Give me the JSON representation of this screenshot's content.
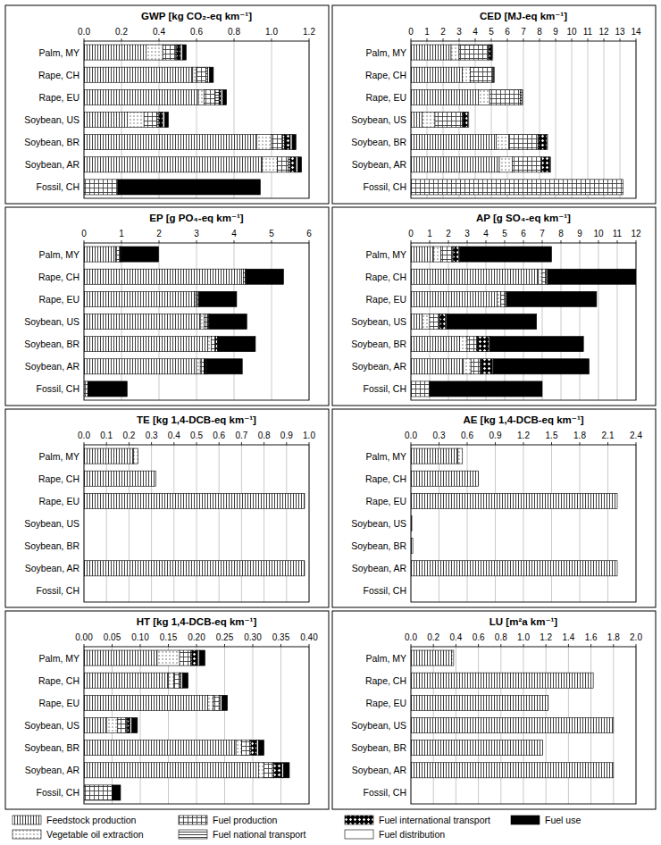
{
  "chart_data": [
    {
      "type": "bar",
      "title": "GWP [kg CO₂-eq km⁻¹]",
      "orientation": "horizontal",
      "stacked": true,
      "grid": true,
      "legend": "bottom",
      "categories": [
        "Palm, MY",
        "Rape, CH",
        "Rape, EU",
        "Soybean, US",
        "Soybean, BR",
        "Soybean, AR",
        "Fossil, CH"
      ],
      "xlim": [
        0,
        1.2
      ],
      "xticks": [
        {
          "value": 0,
          "label": "0.0"
        },
        0.2,
        0.4,
        0.6,
        0.8,
        {
          "value": 1,
          "label": "1.0"
        },
        1.2
      ],
      "series": [
        {
          "name": "Feedstock production",
          "color": "#404040",
          "values": [
            0.33,
            0.58,
            0.61,
            0.23,
            0.92,
            0.95,
            0
          ]
        },
        {
          "name": "Vegetable oil extraction",
          "color": "#505050",
          "values": [
            0.09,
            0.02,
            0.03,
            0.09,
            0.08,
            0.08,
            0
          ]
        },
        {
          "name": "Fuel production",
          "color": "#404040",
          "values": [
            0.07,
            0.05,
            0.06,
            0.07,
            0.06,
            0.06,
            0.18
          ]
        },
        {
          "name": "Fuel national transport",
          "color": "#404040",
          "values": [
            0.005,
            0.01,
            0.02,
            0.01,
            0.01,
            0.01,
            0
          ]
        },
        {
          "name": "Fuel international transport",
          "color": "#000000",
          "values": [
            0.02,
            0,
            0.01,
            0.02,
            0.03,
            0.03,
            0
          ]
        },
        {
          "name": "Fuel distribution",
          "color": "#ffffff",
          "values": [
            0.01,
            0.01,
            0.01,
            0.01,
            0.01,
            0.01,
            0
          ]
        },
        {
          "name": "Fuel use",
          "color": "#000000",
          "values": [
            0.02,
            0.02,
            0.02,
            0.02,
            0.02,
            0.02,
            0.76
          ]
        }
      ]
    },
    {
      "type": "bar",
      "title": "CED [MJ-eq km⁻¹]",
      "orientation": "horizontal",
      "stacked": true,
      "grid": true,
      "categories": [
        "Palm, MY",
        "Rape, CH",
        "Rape, EU",
        "Soybean, US",
        "Soybean, BR",
        "Soybean, AR",
        "Fossil, CH"
      ],
      "xlim": [
        0,
        14
      ],
      "xticks": [
        0,
        1,
        2,
        3,
        4,
        5,
        6,
        7,
        8,
        9,
        10,
        11,
        12,
        13,
        14
      ],
      "series": [
        {
          "name": "Feedstock production",
          "color": "#404040",
          "values": [
            2.5,
            3.2,
            4.2,
            0.7,
            5.3,
            5.5,
            0
          ]
        },
        {
          "name": "Vegetable oil extraction",
          "color": "#505050",
          "values": [
            0.5,
            0.5,
            0.7,
            0.8,
            0.8,
            0.8,
            0
          ]
        },
        {
          "name": "Fuel production",
          "color": "#404040",
          "values": [
            1.8,
            1.4,
            1.9,
            1.7,
            1.8,
            1.8,
            13.2
          ]
        },
        {
          "name": "Fuel national transport",
          "color": "#404040",
          "values": [
            0.05,
            0.05,
            0.1,
            0.05,
            0.05,
            0.05,
            0
          ]
        },
        {
          "name": "Fuel international transport",
          "color": "#000000",
          "values": [
            0.2,
            0,
            0,
            0.3,
            0.5,
            0.5,
            0
          ]
        },
        {
          "name": "Fuel distribution",
          "color": "#ffffff",
          "values": [
            0.05,
            0.05,
            0.05,
            0.05,
            0.05,
            0.05,
            0
          ]
        },
        {
          "name": "Fuel use",
          "color": "#000000",
          "values": [
            0,
            0,
            0,
            0,
            0,
            0,
            0
          ]
        }
      ]
    },
    {
      "type": "bar",
      "title": "EP [g PO₄-eq km⁻¹]",
      "orientation": "horizontal",
      "stacked": true,
      "grid": true,
      "categories": [
        "Palm, MY",
        "Rape, CH",
        "Rape, EU",
        "Soybean, US",
        "Soybean, BR",
        "Soybean, AR",
        "Fossil, CH"
      ],
      "xlim": [
        0,
        6
      ],
      "xticks": [
        0,
        1,
        2,
        3,
        4,
        5,
        6
      ],
      "series": [
        {
          "name": "Feedstock production",
          "color": "#404040",
          "values": [
            0.8,
            4.2,
            2.95,
            3.1,
            3.3,
            3.0,
            0
          ]
        },
        {
          "name": "Vegetable oil extraction",
          "color": "#505050",
          "values": [
            0.05,
            0.05,
            0.05,
            0.1,
            0.1,
            0.1,
            0
          ]
        },
        {
          "name": "Fuel production",
          "color": "#404040",
          "values": [
            0.1,
            0.05,
            0.05,
            0.1,
            0.1,
            0.1,
            0.1
          ]
        },
        {
          "name": "Fuel national transport",
          "color": "#404040",
          "values": [
            0.01,
            0.01,
            0.01,
            0.01,
            0.01,
            0.01,
            0
          ]
        },
        {
          "name": "Fuel international transport",
          "color": "#000000",
          "values": [
            0.02,
            0,
            0,
            0.02,
            0.05,
            0.05,
            0
          ]
        },
        {
          "name": "Fuel distribution",
          "color": "#ffffff",
          "values": [
            0.01,
            0.01,
            0.01,
            0.01,
            0.01,
            0.01,
            0
          ]
        },
        {
          "name": "Fuel use",
          "color": "#000000",
          "values": [
            1.0,
            1.0,
            1.0,
            1.0,
            1.0,
            0.95,
            1.05
          ]
        }
      ]
    },
    {
      "type": "bar",
      "title": "AP [g SO₄-eq km⁻¹]",
      "orientation": "horizontal",
      "stacked": true,
      "grid": true,
      "categories": [
        "Palm, MY",
        "Rape, CH",
        "Rape, EU",
        "Soybean, US",
        "Soybean, BR",
        "Soybean, AR",
        "Fossil, CH"
      ],
      "xlim": [
        0,
        12
      ],
      "xticks": [
        0,
        1,
        2,
        3,
        4,
        5,
        6,
        7,
        8,
        9,
        10,
        11,
        12
      ],
      "series": [
        {
          "name": "Feedstock production",
          "color": "#404040",
          "values": [
            1.2,
            6.8,
            4.6,
            0.6,
            2.6,
            2.8,
            0
          ]
        },
        {
          "name": "Vegetable oil extraction",
          "color": "#505050",
          "values": [
            0.4,
            0.2,
            0.2,
            0.4,
            0.4,
            0.4,
            0
          ]
        },
        {
          "name": "Fuel production",
          "color": "#404040",
          "values": [
            0.6,
            0.2,
            0.2,
            0.5,
            0.5,
            0.5,
            1.0
          ]
        },
        {
          "name": "Fuel national transport",
          "color": "#404040",
          "values": [
            0.05,
            0.05,
            0.05,
            0.05,
            0.05,
            0.05,
            0
          ]
        },
        {
          "name": "Fuel international transport",
          "color": "#000000",
          "values": [
            0.3,
            0,
            0,
            0.3,
            0.6,
            0.6,
            0
          ]
        },
        {
          "name": "Fuel distribution",
          "color": "#ffffff",
          "values": [
            0.05,
            0.05,
            0.05,
            0.05,
            0.05,
            0.05,
            0
          ]
        },
        {
          "name": "Fuel use",
          "color": "#000000",
          "values": [
            4.9,
            4.7,
            4.8,
            4.8,
            5.0,
            5.1,
            6.0
          ]
        }
      ]
    },
    {
      "type": "bar",
      "title": "TE [kg 1,4-DCB-eq km⁻¹]",
      "orientation": "horizontal",
      "stacked": true,
      "grid": true,
      "categories": [
        "Palm, MY",
        "Rape, CH",
        "Rape, EU",
        "Soybean, US",
        "Soybean, BR",
        "Soybean, AR",
        "Fossil, CH"
      ],
      "xlim": [
        0,
        1
      ],
      "xticks": [
        {
          "value": 0,
          "label": "0.0"
        },
        0.1,
        0.2,
        0.3,
        0.4,
        0.5,
        0.6,
        0.7,
        0.8,
        0.9,
        {
          "value": 1,
          "label": "1.0"
        }
      ],
      "series": [
        {
          "name": "Feedstock production",
          "color": "#404040",
          "values": [
            0.22,
            0.32,
            0.98,
            0,
            0,
            0.98,
            0
          ]
        },
        {
          "name": "Vegetable oil extraction",
          "color": "#505050",
          "values": [
            0.02,
            0,
            0,
            0,
            0,
            0,
            0
          ]
        },
        {
          "name": "Fuel production",
          "color": "#404040",
          "values": [
            0,
            0,
            0,
            0,
            0,
            0,
            0
          ]
        },
        {
          "name": "Fuel national transport",
          "color": "#404040",
          "values": [
            0,
            0,
            0,
            0,
            0,
            0,
            0
          ]
        },
        {
          "name": "Fuel international transport",
          "color": "#000000",
          "values": [
            0,
            0,
            0,
            0,
            0,
            0,
            0
          ]
        },
        {
          "name": "Fuel distribution",
          "color": "#ffffff",
          "values": [
            0,
            0,
            0,
            0,
            0,
            0,
            0
          ]
        },
        {
          "name": "Fuel use",
          "color": "#000000",
          "values": [
            0,
            0,
            0,
            0,
            0,
            0,
            0
          ]
        }
      ]
    },
    {
      "type": "bar",
      "title": "AE [kg 1,4-DCB-eq km⁻¹]",
      "orientation": "horizontal",
      "stacked": true,
      "grid": true,
      "categories": [
        "Palm, MY",
        "Rape, CH",
        "Rape, EU",
        "Soybean, US",
        "Soybean, BR",
        "Soybean, AR",
        "Fossil, CH"
      ],
      "xlim": [
        0,
        2.4
      ],
      "xticks": [
        {
          "value": 0,
          "label": "0.0"
        },
        0.3,
        0.6,
        0.9,
        1.2,
        1.5,
        1.8,
        2.1,
        2.4
      ],
      "series": [
        {
          "name": "Feedstock production",
          "color": "#404040",
          "values": [
            0.5,
            0.72,
            2.2,
            0.01,
            0.02,
            2.2,
            0
          ]
        },
        {
          "name": "Vegetable oil extraction",
          "color": "#505050",
          "values": [
            0.05,
            0,
            0,
            0,
            0,
            0,
            0
          ]
        },
        {
          "name": "Fuel production",
          "color": "#404040",
          "values": [
            0,
            0,
            0,
            0,
            0,
            0,
            0
          ]
        },
        {
          "name": "Fuel national transport",
          "color": "#404040",
          "values": [
            0,
            0,
            0,
            0,
            0,
            0,
            0
          ]
        },
        {
          "name": "Fuel international transport",
          "color": "#000000",
          "values": [
            0,
            0,
            0,
            0,
            0,
            0,
            0
          ]
        },
        {
          "name": "Fuel distribution",
          "color": "#ffffff",
          "values": [
            0,
            0,
            0,
            0,
            0,
            0,
            0
          ]
        },
        {
          "name": "Fuel use",
          "color": "#000000",
          "values": [
            0,
            0,
            0,
            0,
            0,
            0,
            0
          ]
        }
      ]
    },
    {
      "type": "bar",
      "title": "HT [kg 1,4-DCB-eq km⁻¹]",
      "orientation": "horizontal",
      "stacked": true,
      "grid": true,
      "categories": [
        "Palm, MY",
        "Rape, CH",
        "Rape, EU",
        "Soybean, US",
        "Soybean, BR",
        "Soybean, AR",
        "Fossil, CH"
      ],
      "xlim": [
        0,
        0.4
      ],
      "xticks": [
        {
          "value": 0,
          "label": "0.00"
        },
        {
          "value": 0.05,
          "label": "0.05"
        },
        {
          "value": 0.1,
          "label": "0.10"
        },
        {
          "value": 0.15,
          "label": "0.15"
        },
        {
          "value": 0.2,
          "label": "0.20"
        },
        {
          "value": 0.25,
          "label": "0.25"
        },
        {
          "value": 0.3,
          "label": "0.30"
        },
        {
          "value": 0.35,
          "label": "0.35"
        },
        {
          "value": 0.4,
          "label": "0.40"
        }
      ],
      "series": [
        {
          "name": "Feedstock production",
          "color": "#404040",
          "values": [
            0.13,
            0.15,
            0.22,
            0.04,
            0.27,
            0.31,
            0
          ]
        },
        {
          "name": "Vegetable oil extraction",
          "color": "#505050",
          "values": [
            0.04,
            0.01,
            0.01,
            0.02,
            0.01,
            0.01,
            0
          ]
        },
        {
          "name": "Fuel production",
          "color": "#404040",
          "values": [
            0.02,
            0.01,
            0.01,
            0.015,
            0.015,
            0.015,
            0.05
          ]
        },
        {
          "name": "Fuel national transport",
          "color": "#404040",
          "values": [
            0.002,
            0.002,
            0.002,
            0.002,
            0.002,
            0.002,
            0
          ]
        },
        {
          "name": "Fuel international transport",
          "color": "#000000",
          "values": [
            0.01,
            0,
            0,
            0.005,
            0.01,
            0.015,
            0
          ]
        },
        {
          "name": "Fuel distribution",
          "color": "#ffffff",
          "values": [
            0.003,
            0.003,
            0.003,
            0.003,
            0.003,
            0.003,
            0
          ]
        },
        {
          "name": "Fuel use",
          "color": "#000000",
          "values": [
            0.01,
            0.01,
            0.01,
            0.01,
            0.01,
            0.01,
            0.015
          ]
        }
      ]
    },
    {
      "type": "bar",
      "title": "LU [m²a km⁻¹]",
      "orientation": "horizontal",
      "stacked": true,
      "grid": true,
      "categories": [
        "Palm, MY",
        "Rape, CH",
        "Rape, EU",
        "Soybean, US",
        "Soybean, BR",
        "Soybean, AR",
        "Fossil, CH"
      ],
      "xlim": [
        0,
        2
      ],
      "xticks": [
        {
          "value": 0,
          "label": "0.0"
        },
        0.2,
        0.4,
        0.6,
        0.8,
        {
          "value": 1,
          "label": "1.0"
        },
        1.2,
        1.4,
        1.6,
        1.8,
        {
          "value": 2,
          "label": "2.0"
        }
      ],
      "series": [
        {
          "name": "Feedstock production",
          "color": "#404040",
          "values": [
            0.36,
            1.62,
            1.22,
            1.8,
            1.17,
            1.8,
            0
          ]
        },
        {
          "name": "Vegetable oil extraction",
          "color": "#505050",
          "values": [
            0.02,
            0,
            0,
            0,
            0,
            0,
            0
          ]
        },
        {
          "name": "Fuel production",
          "color": "#404040",
          "values": [
            0,
            0,
            0,
            0,
            0,
            0,
            0
          ]
        },
        {
          "name": "Fuel national transport",
          "color": "#404040",
          "values": [
            0,
            0,
            0,
            0,
            0,
            0,
            0
          ]
        },
        {
          "name": "Fuel international transport",
          "color": "#000000",
          "values": [
            0,
            0,
            0,
            0,
            0,
            0,
            0
          ]
        },
        {
          "name": "Fuel distribution",
          "color": "#ffffff",
          "values": [
            0,
            0,
            0,
            0,
            0,
            0,
            0
          ]
        },
        {
          "name": "Fuel use",
          "color": "#000000",
          "values": [
            0,
            0,
            0,
            0,
            0,
            0,
            0
          ]
        }
      ]
    }
  ]
}
